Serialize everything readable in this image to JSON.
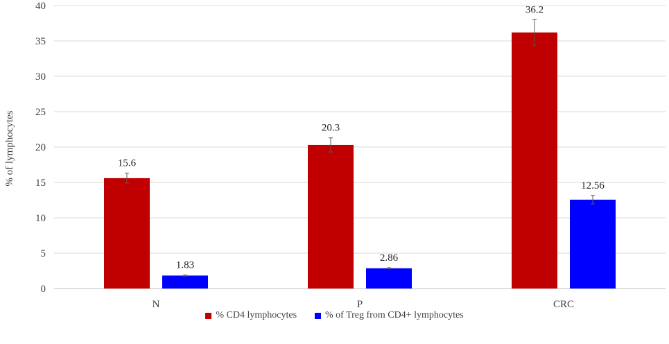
{
  "chart_data": {
    "type": "bar",
    "categories": [
      "N",
      "P",
      "CRC"
    ],
    "series": [
      {
        "name": "% CD4 lymphocytes",
        "color": "#C00000",
        "values": [
          15.6,
          20.3,
          36.2
        ],
        "errors": [
          0.7,
          1.0,
          1.8
        ],
        "labels": [
          "15.6",
          "20.3",
          "36.2"
        ]
      },
      {
        "name": "% of Treg from CD4+ lymphocytes",
        "color": "#0000FF",
        "values": [
          1.83,
          2.86,
          12.56
        ],
        "errors": [
          0.08,
          0.08,
          0.6
        ],
        "labels": [
          "1.83",
          "2.86",
          "12.56"
        ]
      }
    ],
    "ylabel": "% of lymphocytes",
    "ylim": [
      0,
      40
    ],
    "yticks": [
      "0",
      "5",
      "10",
      "15",
      "20",
      "25",
      "30",
      "35",
      "40"
    ],
    "grid": true,
    "legend_position": "bottom"
  }
}
